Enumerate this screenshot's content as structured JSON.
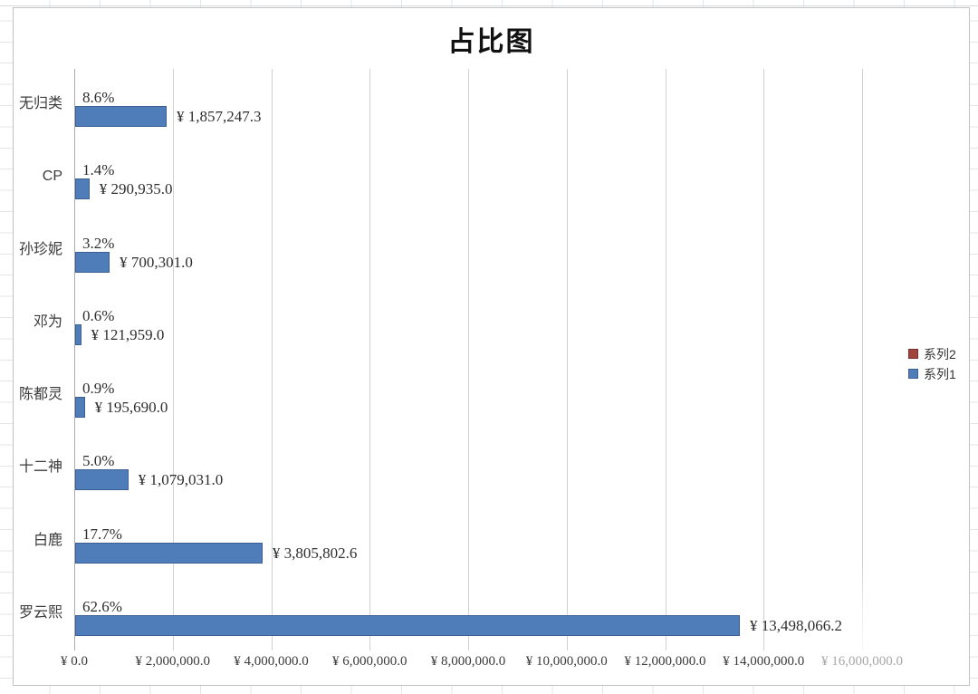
{
  "chart_data": {
    "type": "bar",
    "orientation": "horizontal",
    "title": "占比图",
    "categories": [
      "无归类",
      "CP",
      "孙珍妮",
      "邓为",
      "陈都灵",
      "十二神",
      "白鹿",
      "罗云熙"
    ],
    "series": [
      {
        "name": "系列1",
        "color": "#4f7dba",
        "border_color": "#3c5f93",
        "values": [
          1857247.3,
          290935.0,
          700301.0,
          121959.0,
          195690.0,
          1079031.0,
          3805802.6,
          13498066.2
        ],
        "value_labels": [
          "¥ 1,857,247.3",
          "¥ 290,935.0",
          "¥ 700,301.0",
          "¥ 121,959.0",
          "¥ 195,690.0",
          "¥ 1,079,031.0",
          "¥ 3,805,802.6",
          "¥ 13,498,066.2"
        ]
      },
      {
        "name": "系列2",
        "color": "#a0443e",
        "border_color": "#7d2f2a",
        "values": [
          8.6,
          1.4,
          3.2,
          0.6,
          0.9,
          5.0,
          17.7,
          62.6
        ],
        "value_labels": [
          "8.6%",
          "1.4%",
          "3.2%",
          "0.6%",
          "0.9%",
          "5.0%",
          "17.7%",
          "62.6%"
        ]
      }
    ],
    "xlim": [
      0,
      16000000
    ],
    "x_ticks": [
      {
        "label": "¥ 0.0",
        "value": 0,
        "faded": false
      },
      {
        "label": "¥ 2,000,000.0",
        "value": 2000000,
        "faded": false
      },
      {
        "label": "¥ 4,000,000.0",
        "value": 4000000,
        "faded": false
      },
      {
        "label": "¥ 6,000,000.0",
        "value": 6000000,
        "faded": false
      },
      {
        "label": "¥ 8,000,000.0",
        "value": 8000000,
        "faded": false
      },
      {
        "label": "¥ 10,000,000.0",
        "value": 10000000,
        "faded": false
      },
      {
        "label": "¥ 12,000,000.0",
        "value": 12000000,
        "faded": false
      },
      {
        "label": "¥ 14,000,000.0",
        "value": 14000000,
        "faded": false
      },
      {
        "label": "¥ 16,000,000.0",
        "value": 16000000,
        "faded": true
      }
    ],
    "grid": "vertical-only",
    "legend_position": "right",
    "legend": [
      {
        "label": "系列2",
        "color": "#a0443e",
        "border_color": "#7d2f2a"
      },
      {
        "label": "系列1",
        "color": "#4f7dba",
        "border_color": "#3c5f93"
      }
    ]
  }
}
